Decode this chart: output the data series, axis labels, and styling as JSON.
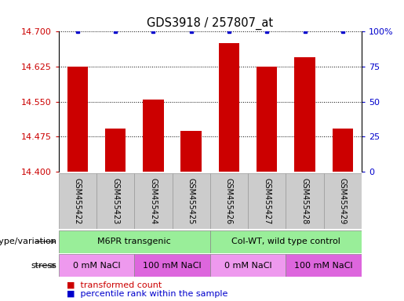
{
  "title": "GDS3918 / 257807_at",
  "categories": [
    "GSM455422",
    "GSM455423",
    "GSM455424",
    "GSM455425",
    "GSM455426",
    "GSM455427",
    "GSM455428",
    "GSM455429"
  ],
  "red_values": [
    14.625,
    14.492,
    14.555,
    14.487,
    14.675,
    14.625,
    14.645,
    14.492
  ],
  "blue_values": [
    100,
    100,
    100,
    100,
    100,
    100,
    100,
    100
  ],
  "y_min": 14.4,
  "y_max": 14.7,
  "y_ticks": [
    14.4,
    14.475,
    14.55,
    14.625,
    14.7
  ],
  "y_right_ticks": [
    0,
    25,
    50,
    75,
    100
  ],
  "y_right_labels": [
    "0",
    "25",
    "50",
    "75",
    "100%"
  ],
  "bar_color": "#cc0000",
  "blue_color": "#0000cc",
  "bg_color": "#ffffff",
  "genotype_groups": [
    {
      "label": "M6PR transgenic",
      "start": 0,
      "end": 4,
      "color": "#99ee99"
    },
    {
      "label": "Col-WT, wild type control",
      "start": 4,
      "end": 8,
      "color": "#99ee99"
    }
  ],
  "stress_groups": [
    {
      "label": "0 mM NaCl",
      "start": 0,
      "end": 2,
      "color": "#ee99ee"
    },
    {
      "label": "100 mM NaCl",
      "start": 2,
      "end": 4,
      "color": "#dd66dd"
    },
    {
      "label": "0 mM NaCl",
      "start": 4,
      "end": 6,
      "color": "#ee99ee"
    },
    {
      "label": "100 mM NaCl",
      "start": 6,
      "end": 8,
      "color": "#dd66dd"
    }
  ],
  "legend_red_label": "transformed count",
  "legend_blue_label": "percentile rank within the sample",
  "genotype_label": "genotype/variation",
  "stress_label": "stress",
  "bar_width": 0.55,
  "tick_label_color": "#bbbbbb",
  "cell_bg": "#cccccc"
}
